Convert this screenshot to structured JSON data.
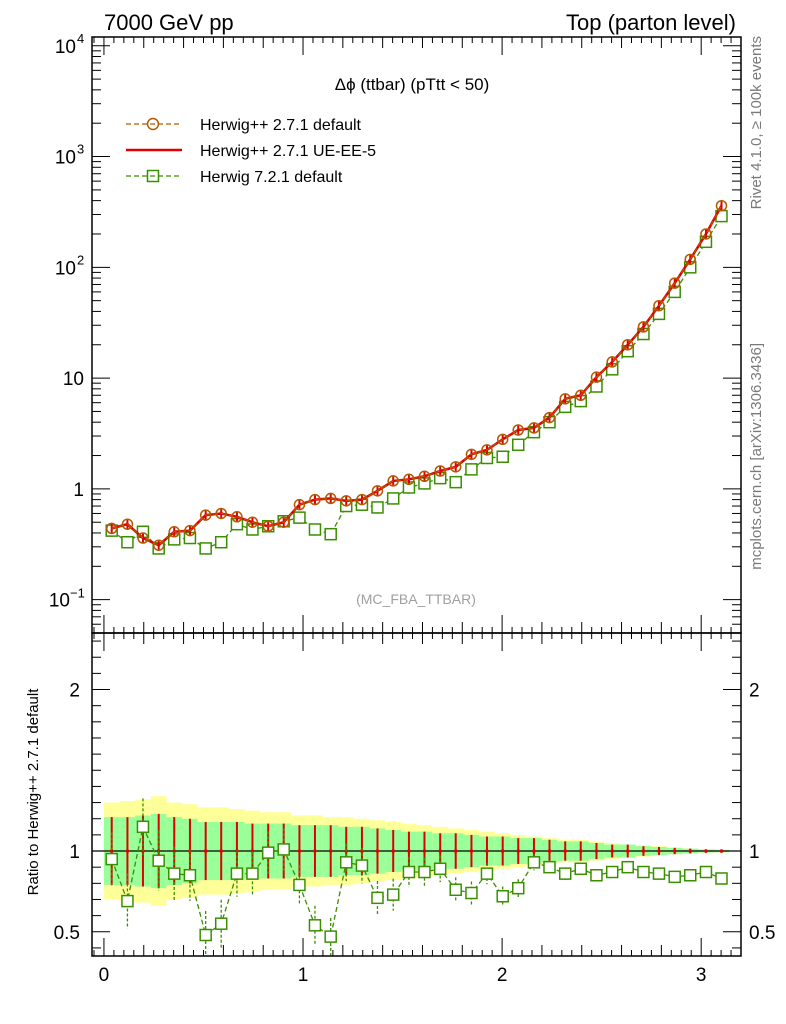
{
  "header": {
    "left": "7000 GeV pp",
    "right": "Top (parton level)"
  },
  "side": {
    "rivet": "Rivet 4.1.0, ≥ 100k events",
    "mcplots": "mcplots.cern.ch [arXiv:1306.3436]"
  },
  "chart_data": [
    {
      "type": "line",
      "title": "Δϕ (ttbar) (pTtt < 50)",
      "watermark": "(MC_FBA_TTBAR)",
      "xlabel": "",
      "ylabel": "",
      "yscale": "log",
      "xlim": [
        -0.06,
        3.2
      ],
      "ylim": [
        0.05,
        12000
      ],
      "ytick_labels": [
        "10^-1",
        "1",
        "10",
        "10^2",
        "10^3",
        "10^4"
      ],
      "x": [
        0.039,
        0.118,
        0.196,
        0.275,
        0.353,
        0.432,
        0.511,
        0.589,
        0.668,
        0.746,
        0.825,
        0.903,
        0.982,
        1.06,
        1.139,
        1.217,
        1.296,
        1.374,
        1.453,
        1.532,
        1.61,
        1.689,
        1.767,
        1.846,
        1.924,
        2.003,
        2.081,
        2.16,
        2.238,
        2.317,
        2.395,
        2.474,
        2.553,
        2.631,
        2.71,
        2.788,
        2.867,
        2.945,
        3.024,
        3.102
      ],
      "series": [
        {
          "name": "Herwig++ 2.7.1 default",
          "color": "#b35900",
          "style": "dashed",
          "marker": "circle",
          "values": [
            0.44,
            0.48,
            0.36,
            0.31,
            0.41,
            0.42,
            0.58,
            0.6,
            0.56,
            0.5,
            0.46,
            0.5,
            0.72,
            0.8,
            0.82,
            0.78,
            0.8,
            0.96,
            1.18,
            1.22,
            1.3,
            1.45,
            1.58,
            2.05,
            2.25,
            2.8,
            3.4,
            3.55,
            4.4,
            6.5,
            7.0,
            10.2,
            14.0,
            20.0,
            29.0,
            45.0,
            72.0,
            118.0,
            200.0,
            360.0
          ]
        },
        {
          "name": "Herwig++ 2.7.1 UE-EE-5",
          "color": "#e00000",
          "style": "solid",
          "marker": "none",
          "values": [
            0.44,
            0.48,
            0.36,
            0.31,
            0.41,
            0.42,
            0.58,
            0.6,
            0.56,
            0.5,
            0.46,
            0.5,
            0.72,
            0.8,
            0.82,
            0.78,
            0.8,
            0.96,
            1.18,
            1.22,
            1.3,
            1.45,
            1.58,
            2.05,
            2.25,
            2.8,
            3.4,
            3.55,
            4.4,
            6.5,
            7.0,
            10.2,
            14.0,
            20.0,
            29.0,
            45.0,
            72.0,
            118.0,
            200.0,
            360.0
          ]
        },
        {
          "name": "Herwig 7.2.1 default",
          "color": "#3a8f00",
          "style": "dashed",
          "marker": "square",
          "values": [
            0.42,
            0.33,
            0.41,
            0.29,
            0.35,
            0.36,
            0.29,
            0.33,
            0.48,
            0.43,
            0.46,
            0.51,
            0.55,
            0.43,
            0.39,
            0.7,
            0.72,
            0.68,
            0.82,
            1.03,
            1.12,
            1.25,
            1.15,
            1.5,
            1.9,
            1.95,
            2.5,
            3.25,
            4.0,
            5.5,
            6.2,
            8.4,
            12.0,
            17.5,
            25.0,
            38.0,
            60.0,
            100.0,
            170.0,
            290.0
          ]
        }
      ]
    },
    {
      "type": "line",
      "title": "",
      "xlabel": "",
      "ylabel": "Ratio to Herwig++ 2.7.1 default",
      "xlim": [
        -0.06,
        3.2
      ],
      "ylim": [
        0.35,
        2.35
      ],
      "yticks": [
        0.5,
        1,
        2
      ],
      "ytick_labels": [
        "0.5",
        "1",
        "2"
      ],
      "xticks": [
        0,
        1,
        2,
        3
      ],
      "xtick_labels": [
        "0",
        "1",
        "2",
        "3"
      ],
      "x": [
        0.039,
        0.118,
        0.196,
        0.275,
        0.353,
        0.432,
        0.511,
        0.589,
        0.668,
        0.746,
        0.825,
        0.903,
        0.982,
        1.06,
        1.139,
        1.217,
        1.296,
        1.374,
        1.453,
        1.532,
        1.61,
        1.689,
        1.767,
        1.846,
        1.924,
        2.003,
        2.081,
        2.16,
        2.238,
        2.317,
        2.395,
        2.474,
        2.553,
        2.631,
        2.71,
        2.788,
        2.867,
        2.945,
        3.024,
        3.102
      ],
      "ref_error_inner": [
        0.21,
        0.21,
        0.22,
        0.23,
        0.21,
        0.2,
        0.18,
        0.18,
        0.18,
        0.17,
        0.17,
        0.17,
        0.16,
        0.16,
        0.16,
        0.15,
        0.15,
        0.14,
        0.13,
        0.12,
        0.12,
        0.11,
        0.11,
        0.1,
        0.09,
        0.09,
        0.08,
        0.08,
        0.07,
        0.06,
        0.06,
        0.05,
        0.04,
        0.04,
        0.03,
        0.025,
        0.02,
        0.015,
        0.01,
        0.008
      ],
      "ref_error_outer": [
        0.3,
        0.31,
        0.32,
        0.34,
        0.3,
        0.29,
        0.27,
        0.27,
        0.26,
        0.25,
        0.24,
        0.24,
        0.22,
        0.22,
        0.21,
        0.21,
        0.2,
        0.19,
        0.18,
        0.17,
        0.16,
        0.15,
        0.14,
        0.13,
        0.12,
        0.11,
        0.1,
        0.09,
        0.08,
        0.07,
        0.07,
        0.06,
        0.05,
        0.04,
        0.035,
        0.03,
        0.02,
        0.015,
        0.01,
        0.008
      ],
      "series": [
        {
          "name": "Herwig++ 2.7.1 UE-EE-5",
          "color": "#e00000",
          "values": [
            1.0,
            1.0,
            1.0,
            1.0,
            1.0,
            1.0,
            1.0,
            1.0,
            1.0,
            1.0,
            1.0,
            1.0,
            1.0,
            1.0,
            1.0,
            1.0,
            1.0,
            1.0,
            1.0,
            1.0,
            1.0,
            1.0,
            1.0,
            1.0,
            1.0,
            1.0,
            1.0,
            1.0,
            1.0,
            1.0,
            1.0,
            1.0,
            1.0,
            1.0,
            1.0,
            1.0,
            1.0,
            1.0,
            1.0,
            1.0
          ]
        },
        {
          "name": "Herwig 7.2.1 default",
          "color": "#3a8f00",
          "values": [
            0.95,
            0.69,
            1.15,
            0.94,
            0.86,
            0.85,
            0.48,
            0.55,
            0.86,
            0.86,
            0.99,
            1.01,
            0.79,
            0.54,
            0.47,
            0.93,
            0.91,
            0.71,
            0.73,
            0.87,
            0.87,
            0.89,
            0.76,
            0.74,
            0.86,
            0.72,
            0.77,
            0.93,
            0.9,
            0.86,
            0.89,
            0.85,
            0.87,
            0.9,
            0.87,
            0.86,
            0.84,
            0.85,
            0.87,
            0.83
          ]
        }
      ]
    }
  ]
}
